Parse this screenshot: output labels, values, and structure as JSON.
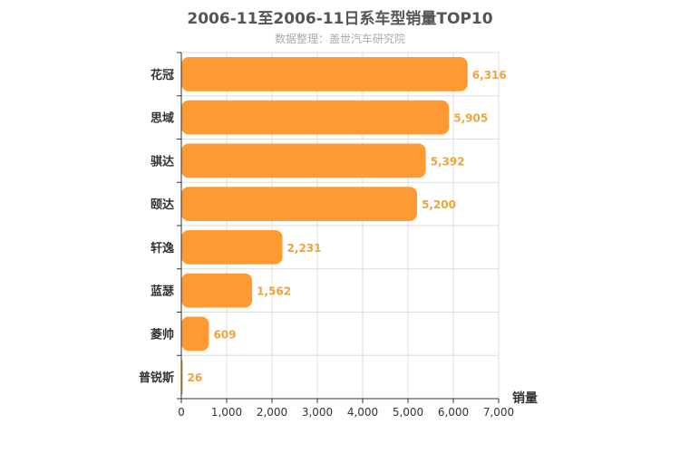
{
  "chart_data": {
    "type": "bar",
    "orientation": "horizontal",
    "title": "2006-11至2006-11日系车型销量TOP10",
    "subtitle": "数据整理：盖世汽车研究院",
    "categories": [
      "花冠",
      "思域",
      "骐达",
      "颐达",
      "轩逸",
      "蓝瑟",
      "菱帅",
      "普锐斯"
    ],
    "values": [
      6316,
      5905,
      5392,
      5200,
      2231,
      1562,
      609,
      26
    ],
    "value_labels": [
      "6,316",
      "5,905",
      "5,392",
      "5,200",
      "2,231",
      "1,562",
      "609",
      "26"
    ],
    "xlabel": "销量",
    "ylabel": "",
    "xlim": [
      0,
      7000
    ],
    "x_ticks": [
      "0",
      "1,000",
      "2,000",
      "3,000",
      "4,000",
      "5,000",
      "6,000",
      "7,000"
    ],
    "grid": true,
    "bar_color": "#ff9a33",
    "label_color": "#f0a33a"
  }
}
